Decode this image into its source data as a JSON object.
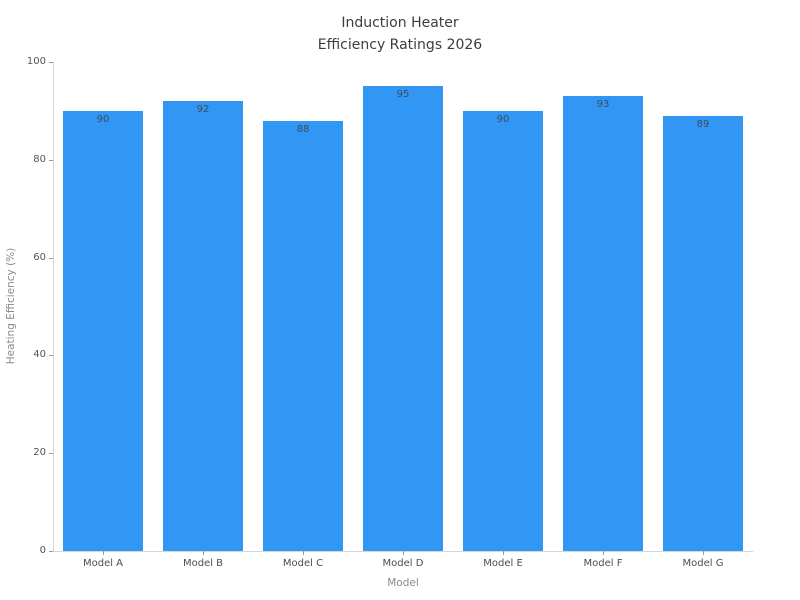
{
  "title": {
    "line1": "Induction Heater",
    "line2": "Efficiency Ratings 2026"
  },
  "chart_data": {
    "type": "bar",
    "title": "Induction Heater\nEfficiency Ratings 2026",
    "categories": [
      "Model A",
      "Model B",
      "Model C",
      "Model D",
      "Model E",
      "Model F",
      "Model G"
    ],
    "values": [
      90,
      92,
      88,
      95,
      90,
      93,
      89
    ],
    "value_labels": [
      "90",
      "92",
      "88",
      "95",
      "90",
      "93",
      "89"
    ],
    "xlabel": "Model",
    "ylabel": "Heating Efficiency (%)",
    "ylim": [
      0,
      100
    ],
    "yticks": [
      0,
      20,
      40,
      60,
      80,
      100
    ],
    "grid": false,
    "legend": null,
    "bar_color": "#3296f5",
    "value_label_color": "#3e4c5d",
    "bar_width_fraction": 0.8
  }
}
